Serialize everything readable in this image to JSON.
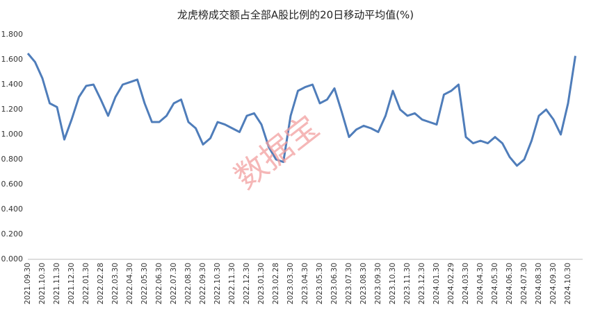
{
  "chart_data": {
    "type": "line",
    "title": "龙虎榜成交额占全部A股比例的20日移动平均值(%)",
    "watermark": "数据宝",
    "categories": [
      "2021.09.30",
      null,
      "2021.10.30",
      null,
      "2021.11.30",
      null,
      "2021.12.30",
      null,
      "2022.01.30",
      null,
      "2022.02.28",
      null,
      "2022.03.30",
      null,
      "2022.04.30",
      null,
      "2022.05.30",
      null,
      "2022.06.30",
      null,
      "2022.07.30",
      null,
      "2022.08.30",
      null,
      "2022.09.30",
      null,
      "2022.10.30",
      null,
      "2022.11.30",
      null,
      "2022.12.30",
      null,
      "2023.01.30",
      null,
      "2023.02.28",
      null,
      "2023.03.30",
      null,
      "2023.04.30",
      null,
      "2023.05.30",
      null,
      "2023.06.30",
      null,
      "2023.07.30",
      null,
      "2023.08.30",
      null,
      "2023.09.30",
      null,
      "2023.10.30",
      null,
      "2023.11.30",
      null,
      "2023.12.30",
      null,
      "2024.01.30",
      null,
      "2024.02.29",
      null,
      "2024.03.30",
      null,
      "2024.04.30",
      null,
      "2024.05.30",
      null,
      "2024.06.30",
      null,
      "2024.07.30",
      null,
      "2024.08.30",
      null,
      "2024.09.30",
      null,
      "2024.10.30",
      null
    ],
    "values": [
      1.65,
      1.58,
      1.45,
      1.25,
      1.22,
      0.96,
      1.12,
      1.3,
      1.39,
      1.4,
      1.28,
      1.15,
      1.3,
      1.4,
      1.42,
      1.44,
      1.25,
      1.1,
      1.1,
      1.15,
      1.25,
      1.28,
      1.1,
      1.05,
      0.92,
      0.97,
      1.1,
      1.08,
      1.05,
      1.02,
      1.15,
      1.17,
      1.08,
      0.9,
      0.8,
      0.78,
      1.15,
      1.35,
      1.38,
      1.4,
      1.25,
      1.28,
      1.37,
      1.18,
      0.98,
      1.04,
      1.07,
      1.05,
      1.02,
      1.15,
      1.35,
      1.2,
      1.15,
      1.17,
      1.12,
      1.1,
      1.08,
      1.32,
      1.35,
      1.4,
      0.98,
      0.93,
      0.95,
      0.93,
      0.98,
      0.93,
      0.82,
      0.75,
      0.8,
      0.95,
      1.15,
      1.2,
      1.12,
      1.0,
      1.25,
      1.63
    ],
    "color": "#4f7dba",
    "ylim": [
      0,
      1.8
    ],
    "yticks": [
      {
        "value": 0,
        "label": "0.000"
      },
      {
        "value": 0.2,
        "label": "0.200"
      },
      {
        "value": 0.4,
        "label": "0.400"
      },
      {
        "value": 0.6,
        "label": "0.600"
      },
      {
        "value": 0.8,
        "label": "0.800"
      },
      {
        "value": 1,
        "label": "1.000"
      },
      {
        "value": 1.2,
        "label": "1.200"
      },
      {
        "value": 1.4,
        "label": "1.400"
      },
      {
        "value": 1.6,
        "label": "1.600"
      },
      {
        "value": 1.8,
        "label": "1.800"
      }
    ],
    "grid": false
  }
}
